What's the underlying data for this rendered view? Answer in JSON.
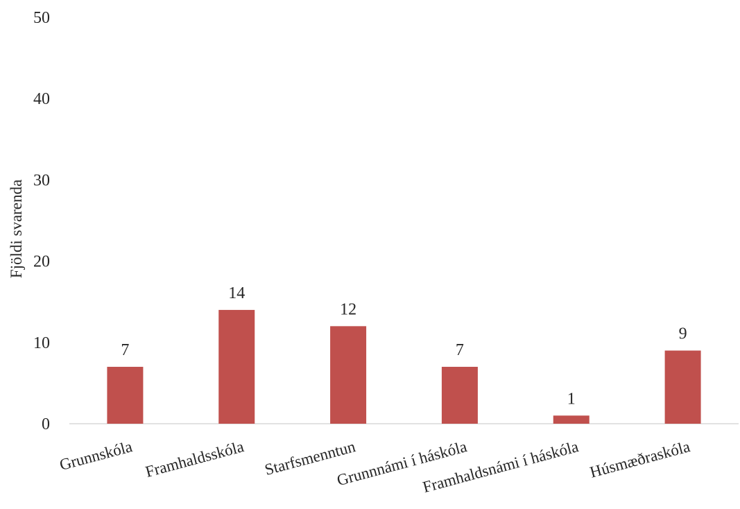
{
  "chart_data": {
    "type": "bar",
    "title": "",
    "xlabel": "",
    "ylabel": "Fjöldi svarenda",
    "categories": [
      "Grunnskóla",
      "Framhaldsskóla",
      "Starfsmenntun",
      "Grunnnámi í háskóla",
      "Framhaldsnámi í háskóla",
      "Húsmæðraskóla"
    ],
    "values": [
      7,
      14,
      12,
      7,
      1,
      9
    ],
    "ylim": [
      0,
      50
    ],
    "yticks": [
      "0",
      "10",
      "20",
      "30",
      "40",
      "50"
    ],
    "data_labels": [
      "7",
      "14",
      "12",
      "7",
      "1",
      "9"
    ],
    "bar_color": "#c0504d",
    "grid": false,
    "legend": "none"
  }
}
